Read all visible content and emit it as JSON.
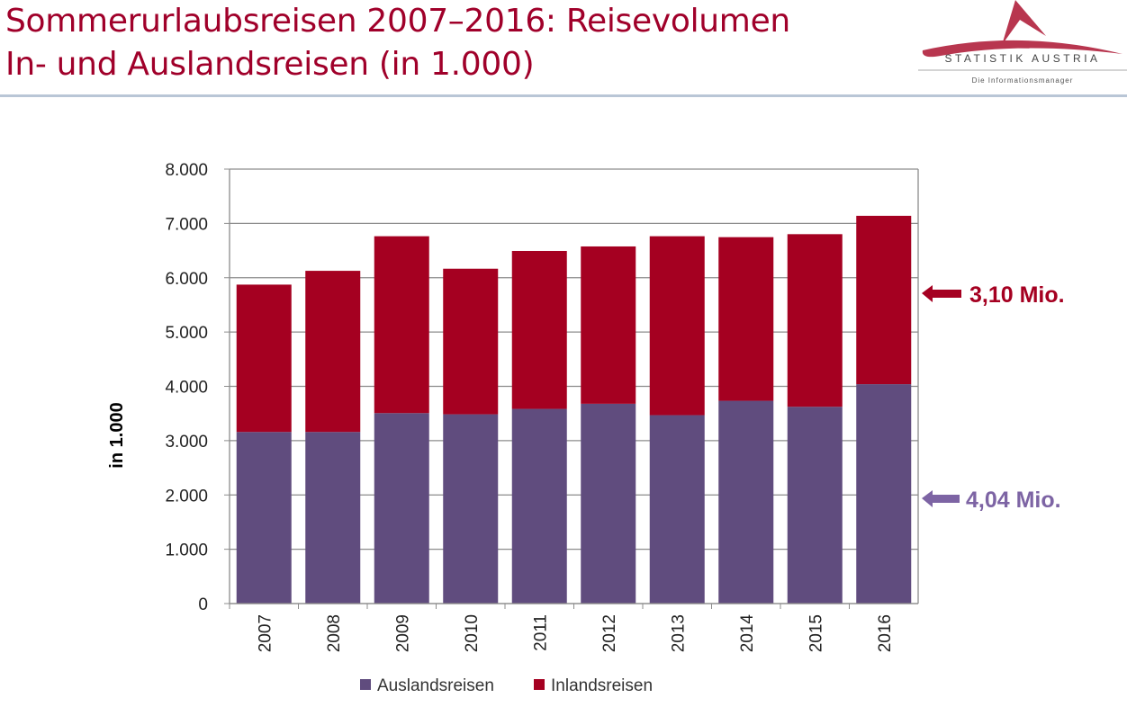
{
  "header": {
    "title_line1": "Sommerurlaubsreisen 2007–2016: Reisevolumen",
    "title_line2": "In- und Auslandsreisen (in 1.000)"
  },
  "logo": {
    "name": "STATISTIK AUSTRIA",
    "tagline": "Die Informationsmanager"
  },
  "chart_data": {
    "type": "bar",
    "stacked": true,
    "categories": [
      "2007",
      "2008",
      "2009",
      "2010",
      "2011",
      "2012",
      "2013",
      "2014",
      "2015",
      "2016"
    ],
    "series": [
      {
        "name": "Auslandsreisen",
        "color": "#604c7e",
        "values": [
          3160,
          3160,
          3507,
          3485,
          3585,
          3679,
          3469,
          3734,
          3624,
          4040
        ]
      },
      {
        "name": "Inlandsreisen",
        "color": "#a50021",
        "values": [
          2713,
          2967,
          3257,
          2681,
          2908,
          2897,
          3295,
          3013,
          3178,
          3100
        ]
      }
    ],
    "ylabel": "in 1.000",
    "ylim": [
      0,
      8000
    ],
    "yticks": [
      "0",
      "1.000",
      "2.000",
      "3.000",
      "4.000",
      "5.000",
      "6.000",
      "7.000",
      "8.000"
    ],
    "grid": true,
    "legend": "bottom",
    "annotations": [
      {
        "text": "3,10 Mio.",
        "series": "Inlandsreisen",
        "color": "#a50021"
      },
      {
        "text": "4,04 Mio.",
        "series": "Auslandsreisen",
        "color": "#7d64a4"
      }
    ]
  }
}
